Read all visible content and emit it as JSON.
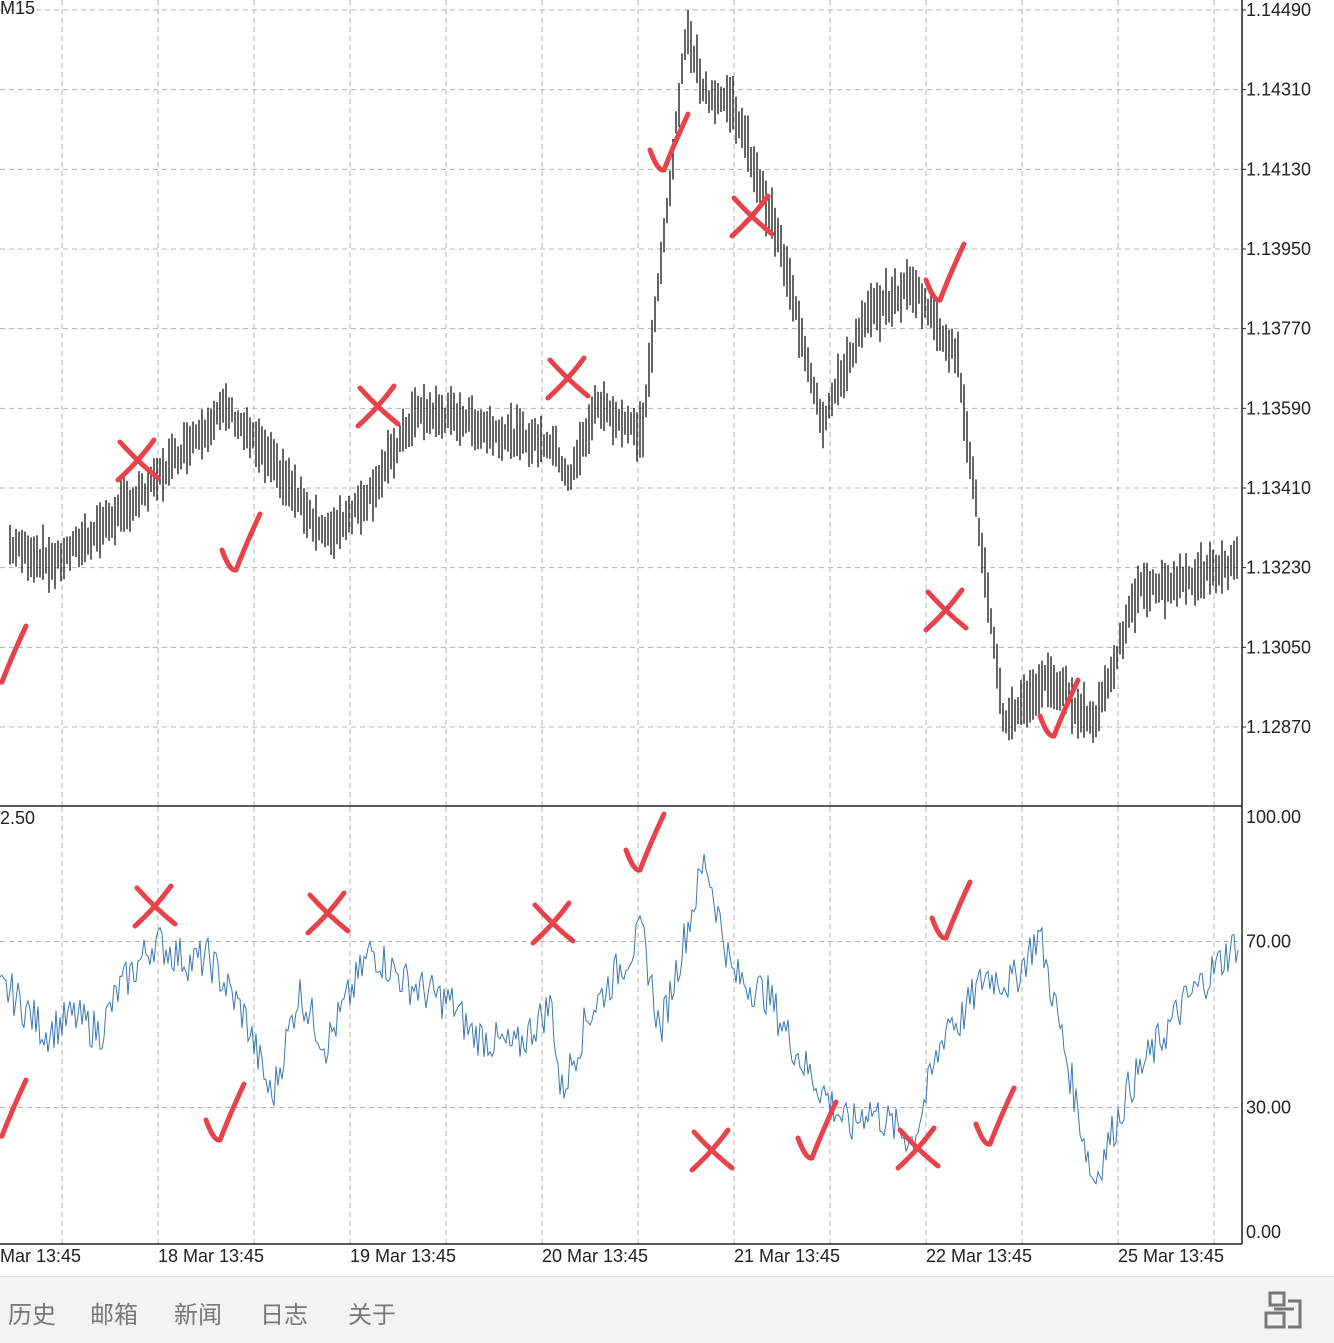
{
  "chart_data": [
    {
      "type": "line",
      "title": "M15",
      "ylim": [
        1.1269,
        1.1449
      ],
      "y_ticks": [
        "1.14490",
        "1.14310",
        "1.14130",
        "1.13950",
        "1.13770",
        "1.13590",
        "1.13410",
        "1.13230",
        "1.13050",
        "1.12870"
      ],
      "x_ticks": [
        "Mar 13:45",
        "18 Mar 13:45",
        "19 Mar 13:45",
        "20 Mar 13:45",
        "21 Mar 13:45",
        "22 Mar 13:45",
        "25 Mar 13:45"
      ],
      "grid": true,
      "series": [
        {
          "color": "#000000",
          "x": [
            0,
            0.25,
            0.5,
            0.75,
            1,
            1.2,
            1.5,
            1.75,
            2,
            2.25,
            2.5,
            2.6,
            2.75,
            3,
            3.1,
            3.25,
            3.5,
            3.75,
            3.85,
            4,
            4.25,
            4.5,
            4.75,
            5,
            5.25,
            5.5,
            5.75,
            6,
            6.25,
            6.5,
            6.8
          ],
          "y": [
            1.1328,
            1.1324,
            1.1332,
            1.134,
            1.1352,
            1.1359,
            1.1344,
            1.133,
            1.134,
            1.1358,
            1.1357,
            1.1355,
            1.1353,
            1.1351,
            1.1343,
            1.136,
            1.1353,
            1.1445,
            1.143,
            1.1428,
            1.1398,
            1.1356,
            1.138,
            1.1387,
            1.137,
            1.1288,
            1.1298,
            1.1288,
            1.1318,
            1.132,
            1.1324
          ]
        }
      ]
    },
    {
      "type": "line",
      "title": "",
      "top_label": "2.50",
      "ylim": [
        0,
        100
      ],
      "y_ticks": [
        "100.00",
        "70.00",
        "30.00",
        "0.00"
      ],
      "grid": true,
      "series": [
        {
          "color": "#3a78b0",
          "x": [
            0,
            0.2,
            0.35,
            0.5,
            0.6,
            0.8,
            1,
            1.1,
            1.3,
            1.45,
            1.6,
            1.75,
            2,
            2.2,
            2.45,
            2.55,
            2.8,
            3,
            3.05,
            3.2,
            3.35,
            3.5,
            3.6,
            3.85,
            4,
            4.2,
            4.3,
            4.4,
            4.65,
            4.75,
            5,
            5.2,
            5.25,
            5.4,
            5.55,
            5.7,
            6,
            6.2,
            6.5,
            6.8
          ],
          "y": [
            58,
            48,
            52,
            48,
            58,
            70,
            65,
            66,
            52,
            32,
            58,
            45,
            68,
            60,
            55,
            48,
            44,
            55,
            33,
            52,
            62,
            72,
            48,
            90,
            62,
            57,
            48,
            40,
            25,
            30,
            22,
            52,
            50,
            62,
            60,
            72,
            12,
            35,
            55,
            70
          ]
        }
      ]
    }
  ],
  "tabs": [
    "历史",
    "邮箱",
    "新闻",
    "日志",
    "关于"
  ],
  "icons": {
    "layout": "layout-toggle-icon"
  },
  "colors": {
    "price": "#000000",
    "indicator": "#3a78b0",
    "annotation": "#e8434a",
    "grid": "#b5b5b5"
  }
}
